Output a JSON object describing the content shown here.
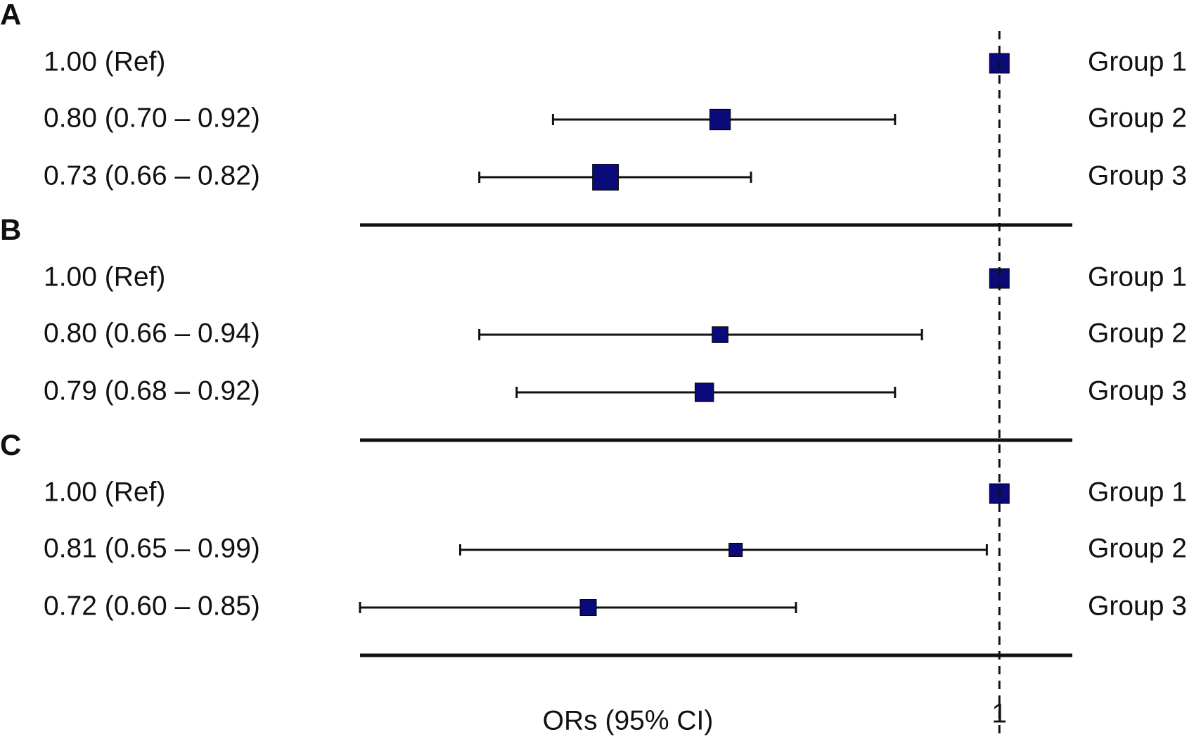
{
  "chart_data": [
    {
      "type": "forest",
      "title": "A",
      "categories": [
        "Group 1",
        "Group 2",
        "Group 3"
      ],
      "values": [
        1.0,
        0.8,
        0.73
      ],
      "lower": [
        null,
        0.7,
        0.66
      ],
      "upper": [
        null,
        0.92,
        0.82
      ],
      "value_labels": [
        "1.00 (Ref)",
        "0.80 (0.70 – 0.92)",
        "0.73 (0.66 – 0.82)"
      ],
      "xlim": [
        0.6,
        1.06
      ],
      "log_scale": true,
      "color": "#0a0a7a"
    },
    {
      "type": "forest",
      "title": "B",
      "categories": [
        "Group 1",
        "Group 2",
        "Group 3"
      ],
      "values": [
        1.0,
        0.8,
        0.79
      ],
      "lower": [
        null,
        0.66,
        0.68
      ],
      "upper": [
        null,
        0.94,
        0.92
      ],
      "value_labels": [
        "1.00 (Ref)",
        "0.80 (0.66 – 0.94)",
        "0.79 (0.68 – 0.92)"
      ],
      "xlim": [
        0.6,
        1.06
      ],
      "log_scale": true,
      "color": "#0a0a7a"
    },
    {
      "type": "forest",
      "title": "C",
      "categories": [
        "Group 1",
        "Group 2",
        "Group 3"
      ],
      "values": [
        1.0,
        0.81,
        0.72
      ],
      "lower": [
        null,
        0.65,
        0.6
      ],
      "upper": [
        null,
        0.99,
        0.85
      ],
      "value_labels": [
        "1.00 (Ref)",
        "0.81 (0.65 – 0.99)",
        "0.72 (0.60 – 0.85)"
      ],
      "xlim": [
        0.6,
        1.06
      ],
      "log_scale": true,
      "color": "#0a0a7a",
      "xlabel": "ORs (95% CI)",
      "xticks": [
        1
      ]
    }
  ]
}
